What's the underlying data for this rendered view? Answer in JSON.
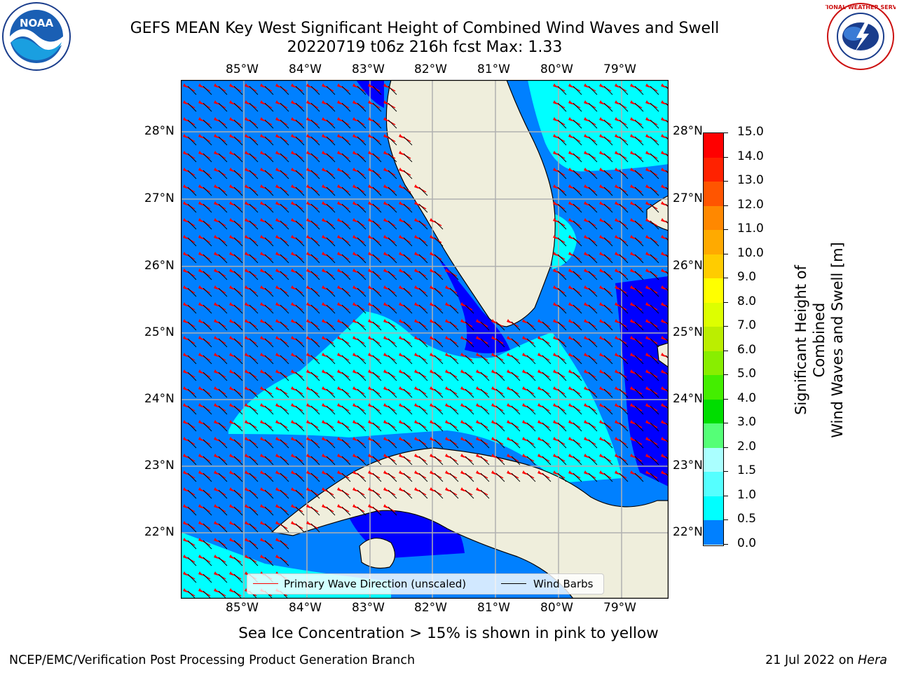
{
  "title_line1": "GEFS MEAN Key West Significant Height of Combined Wind Waves and Swell",
  "title_line2": "20220719 t06z 216h fcst   Max: 1.33",
  "logos": {
    "left": "NOAA",
    "right": "NATIONAL WEATHER SERVICE"
  },
  "map": {
    "lon_labels": [
      "85°W",
      "84°W",
      "83°W",
      "82°W",
      "81°W",
      "80°W",
      "79°W"
    ],
    "lat_labels": [
      "28°N",
      "27°N",
      "26°N",
      "25°N",
      "24°N",
      "23°N",
      "22°N"
    ],
    "colors": {
      "land": "#efeedc",
      "shallow": "#0000ff",
      "mid": "#0080ff",
      "high": "#00ffff",
      "arrow": "#ff0000",
      "barb": "#000000",
      "grid": "#b0b0b0"
    }
  },
  "legend": {
    "primary_label": "Primary Wave Direction (unscaled)",
    "barb_label": "Wind Barbs",
    "primary_color": "#ff0000",
    "barb_color": "#000000"
  },
  "colorbar": {
    "label_line1": "Significant Height of Combined",
    "label_line2": "Wind Waves and Swell [m]",
    "ticks": [
      "15.0",
      "14.0",
      "13.0",
      "12.0",
      "11.0",
      "10.0",
      "9.0",
      "8.0",
      "7.0",
      "6.0",
      "5.0",
      "4.0",
      "3.0",
      "2.0",
      "1.5",
      "1.0",
      "0.5",
      "0.0"
    ],
    "colors_top_to_bottom": [
      "#ff0000",
      "#ff2200",
      "#ff5500",
      "#ff8800",
      "#ffaa00",
      "#ffcc00",
      "#ffff00",
      "#ddff00",
      "#bbee00",
      "#88ee00",
      "#44ee00",
      "#00dd00",
      "#55ff77",
      "#aaffff",
      "#55ffff",
      "#00ffff",
      "#0080ff",
      "#0000ff"
    ]
  },
  "caption": "Sea Ice Concentration > 15% is shown in pink to yellow",
  "footer_left": "NCEP/EMC/Verification Post Processing Product Generation Branch",
  "footer_right_prefix": "21 Jul 2022 on ",
  "footer_right_host": "Hera"
}
